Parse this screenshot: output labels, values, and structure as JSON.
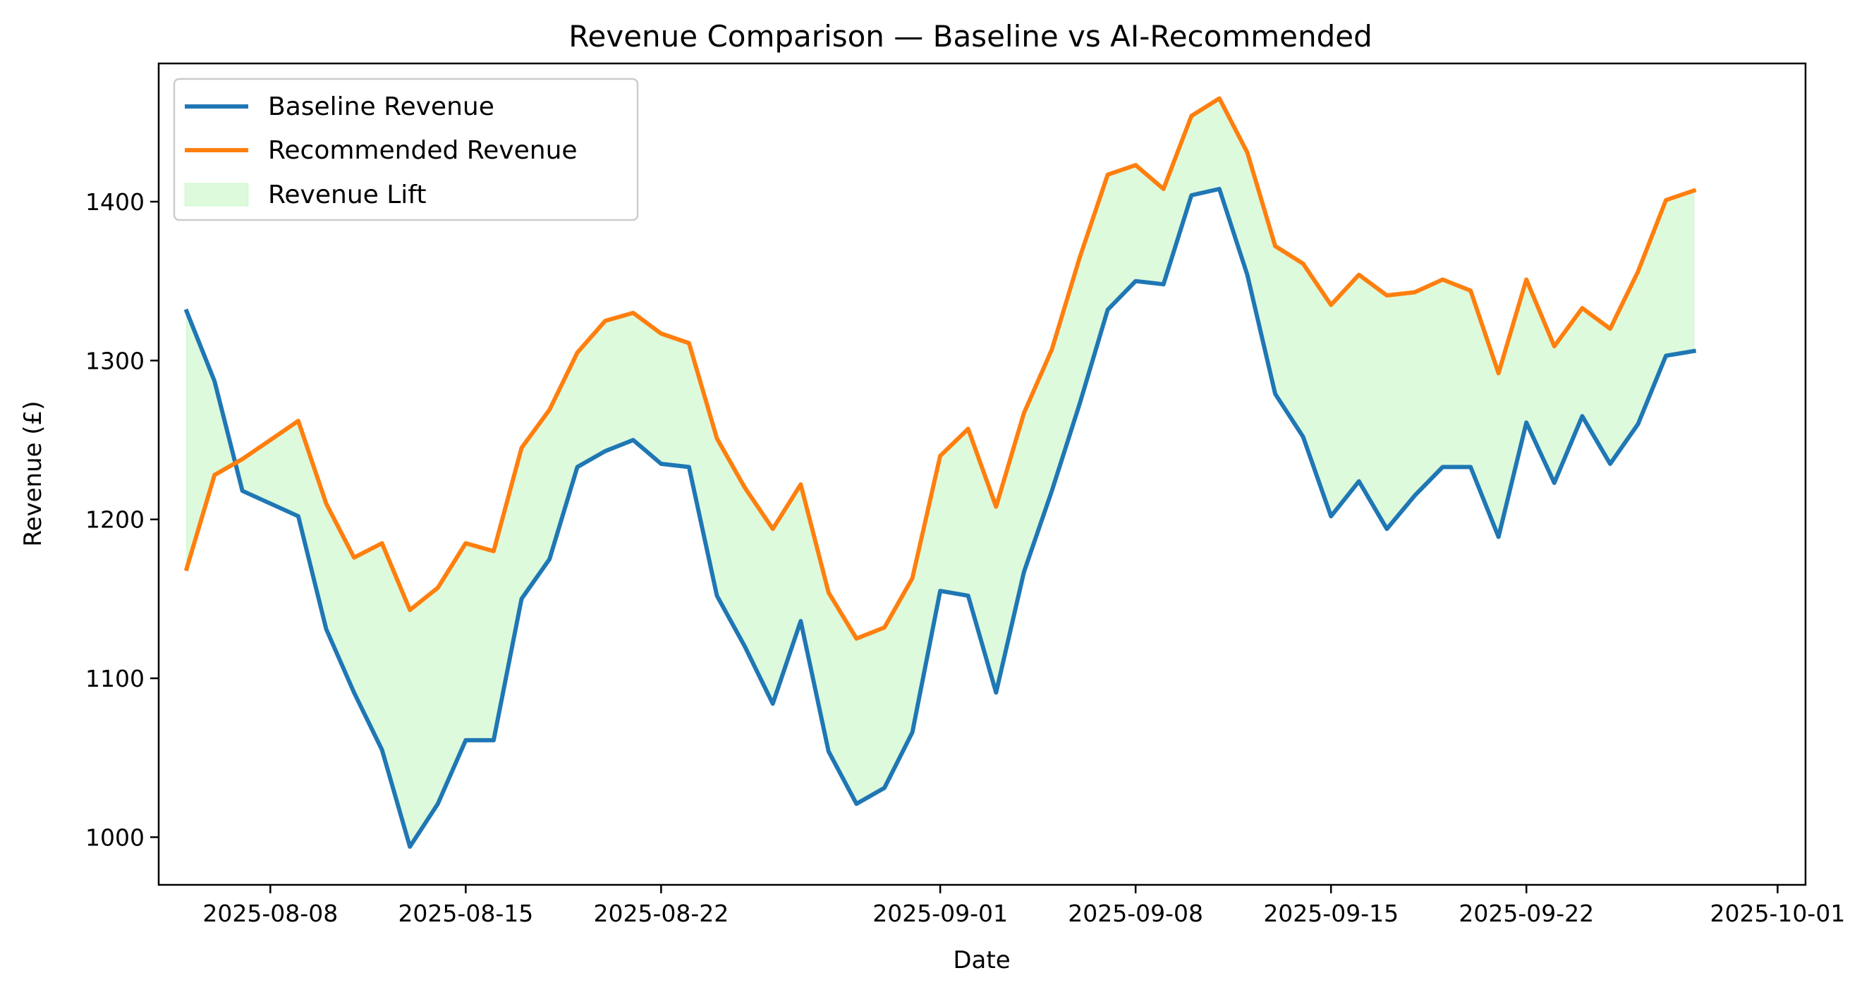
{
  "chart_data": {
    "type": "line",
    "title": "Revenue Comparison — Baseline vs AI-Recommended",
    "xlabel": "Date",
    "ylabel": "Revenue (£)",
    "x_start": "2025-08-05",
    "x_step_days": 1,
    "xlim": [
      "2025-08-04",
      "2025-10-02"
    ],
    "ylim": [
      970,
      1487
    ],
    "x_ticks": [
      "2025-08-08",
      "2025-08-15",
      "2025-08-22",
      "2025-09-01",
      "2025-09-08",
      "2025-09-15",
      "2025-09-22",
      "2025-10-01"
    ],
    "y_ticks": [
      1000,
      1100,
      1200,
      1300,
      1400
    ],
    "grid": false,
    "legend_position": "top-left",
    "series": [
      {
        "name": "Baseline Revenue",
        "color": "#1f77b4",
        "values": [
          1331,
          1287,
          1218,
          1210,
          1202,
          1131,
          1091,
          1055,
          994,
          1021,
          1061,
          1061,
          1150,
          1175,
          1233,
          1243,
          1250,
          1235,
          1233,
          1152,
          1120,
          1084,
          1136,
          1054,
          1021,
          1031,
          1066,
          1155,
          1152,
          1091,
          1167,
          1218,
          1273,
          1332,
          1350,
          1348,
          1404,
          1408,
          1354,
          1279,
          1252,
          1202,
          1224,
          1194,
          1215,
          1233,
          1233,
          1189,
          1261,
          1223,
          1265,
          1235,
          1260,
          1303,
          1306
        ]
      },
      {
        "name": "Recommended Revenue",
        "color": "#ff7f0e",
        "values": [
          1169,
          1228,
          1238,
          1250,
          1262,
          1210,
          1176,
          1185,
          1143,
          1157,
          1185,
          1180,
          1245,
          1269,
          1305,
          1325,
          1330,
          1317,
          1311,
          1251,
          1220,
          1194,
          1222,
          1154,
          1125,
          1132,
          1163,
          1240,
          1257,
          1208,
          1267,
          1307,
          1365,
          1417,
          1423,
          1408,
          1454,
          1465,
          1431,
          1372,
          1361,
          1335,
          1354,
          1341,
          1343,
          1351,
          1344,
          1292,
          1351,
          1309,
          1333,
          1320,
          1356,
          1401,
          1407
        ]
      }
    ],
    "fill_between": {
      "name": "Revenue Lift",
      "color": "#90ee90",
      "alpha": 0.3
    }
  }
}
